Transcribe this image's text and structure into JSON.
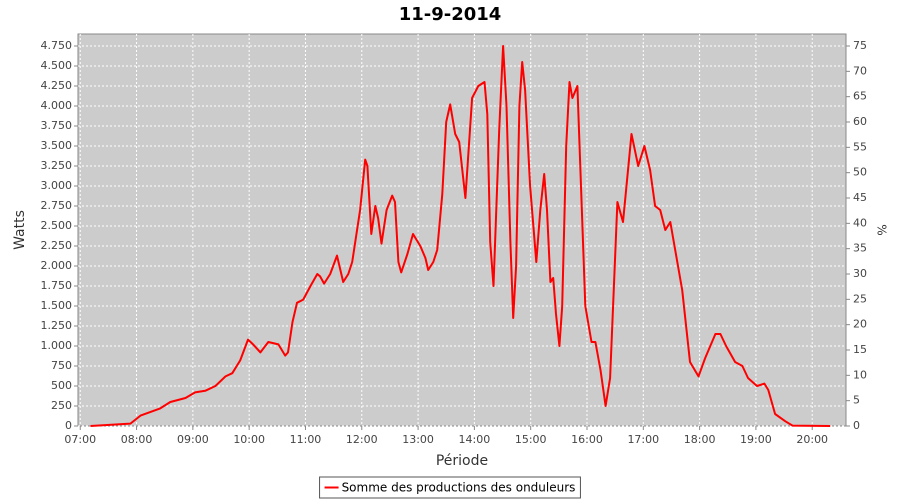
{
  "chart_data": {
    "type": "line",
    "title": "11-9-2014",
    "x_label": "Période",
    "y_label": "Watts",
    "y2_label": "%",
    "x": [
      7.18,
      7.89,
      8.07,
      8.42,
      8.6,
      8.87,
      9.04,
      9.22,
      9.4,
      9.58,
      9.7,
      9.84,
      9.98,
      10.07,
      10.2,
      10.34,
      10.52,
      10.64,
      10.69,
      10.77,
      10.85,
      10.96,
      11.09,
      11.21,
      11.26,
      11.33,
      11.44,
      11.56,
      11.67,
      11.76,
      11.83,
      11.97,
      12.06,
      12.1,
      12.17,
      12.24,
      12.29,
      12.35,
      12.44,
      12.54,
      12.59,
      12.65,
      12.7,
      12.81,
      12.91,
      13.04,
      13.13,
      13.18,
      13.27,
      13.34,
      13.43,
      13.5,
      13.57,
      13.66,
      13.73,
      13.84,
      13.96,
      14.07,
      14.18,
      14.23,
      14.28,
      14.34,
      14.44,
      14.51,
      14.57,
      14.64,
      14.69,
      14.74,
      14.8,
      14.85,
      14.9,
      14.99,
      15.1,
      15.17,
      15.24,
      15.29,
      15.35,
      15.4,
      15.45,
      15.51,
      15.56,
      15.63,
      15.69,
      15.74,
      15.83,
      15.97,
      16.08,
      16.15,
      16.24,
      16.33,
      16.41,
      16.54,
      16.64,
      16.79,
      16.91,
      17.02,
      17.12,
      17.21,
      17.3,
      17.39,
      17.48,
      17.69,
      17.83,
      17.98,
      18.1,
      18.28,
      18.37,
      18.47,
      18.63,
      18.76,
      18.86,
      19.02,
      19.15,
      19.22,
      19.34,
      19.52,
      19.65,
      20.32
    ],
    "series": [
      {
        "name": "Somme des productions des onduleurs",
        "color": "#ff0000",
        "values": [
          0,
          30,
          130,
          220,
          300,
          350,
          420,
          440,
          500,
          620,
          660,
          820,
          1080,
          1020,
          920,
          1050,
          1020,
          880,
          920,
          1300,
          1540,
          1580,
          1750,
          1900,
          1870,
          1780,
          1900,
          2130,
          1800,
          1900,
          2050,
          2700,
          3330,
          3250,
          2400,
          2750,
          2600,
          2280,
          2700,
          2880,
          2800,
          2050,
          1920,
          2150,
          2400,
          2250,
          2100,
          1950,
          2050,
          2200,
          2900,
          3800,
          4020,
          3650,
          3550,
          2850,
          4100,
          4250,
          4300,
          3900,
          2300,
          1750,
          3700,
          4750,
          4000,
          2300,
          1350,
          2000,
          4000,
          4550,
          4200,
          3000,
          2050,
          2700,
          3150,
          2700,
          1800,
          1850,
          1400,
          1000,
          1500,
          3500,
          4300,
          4100,
          4250,
          1500,
          1050,
          1050,
          700,
          250,
          600,
          2800,
          2550,
          3650,
          3250,
          3500,
          3200,
          2750,
          2700,
          2450,
          2550,
          1700,
          800,
          620,
          850,
          1150,
          1150,
          1000,
          800,
          750,
          600,
          500,
          530,
          450,
          150,
          60,
          5,
          0
        ]
      }
    ],
    "xlim": [
      6.96,
      20.6
    ],
    "xticks": [
      {
        "value": 7,
        "label": "07:00"
      },
      {
        "value": 8,
        "label": "08:00"
      },
      {
        "value": 9,
        "label": "09:00"
      },
      {
        "value": 10,
        "label": "10:00"
      },
      {
        "value": 11,
        "label": "11:00"
      },
      {
        "value": 12,
        "label": "12:00"
      },
      {
        "value": 13,
        "label": "13:00"
      },
      {
        "value": 14,
        "label": "14:00"
      },
      {
        "value": 15,
        "label": "15:00"
      },
      {
        "value": 16,
        "label": "16:00"
      },
      {
        "value": 17,
        "label": "17:00"
      },
      {
        "value": 18,
        "label": "18:00"
      },
      {
        "value": 19,
        "label": "19:00"
      },
      {
        "value": 20,
        "label": "20:00"
      }
    ],
    "ylim": [
      0,
      4900
    ],
    "yticks": [
      0,
      250,
      500,
      750,
      {
        "value": 1000,
        "label": "1.000"
      },
      {
        "value": 1250,
        "label": "1.250"
      },
      {
        "value": 1500,
        "label": "1.500"
      },
      {
        "value": 1750,
        "label": "1.750"
      },
      {
        "value": 2000,
        "label": "2.000"
      },
      {
        "value": 2250,
        "label": "2.250"
      },
      {
        "value": 2500,
        "label": "2.500"
      },
      {
        "value": 2750,
        "label": "2.750"
      },
      {
        "value": 3000,
        "label": "3.000"
      },
      {
        "value": 3250,
        "label": "3.250"
      },
      {
        "value": 3500,
        "label": "3.500"
      },
      {
        "value": 3750,
        "label": "3.750"
      },
      {
        "value": 4000,
        "label": "4.000"
      },
      {
        "value": 4250,
        "label": "4.250"
      },
      {
        "value": 4500,
        "label": "4.500"
      },
      {
        "value": 4750,
        "label": "4.750"
      }
    ],
    "y2lim": [
      0,
      77.37
    ],
    "y2ticks": [
      0,
      5,
      10,
      15,
      20,
      25,
      30,
      35,
      40,
      45,
      50,
      55,
      60,
      65,
      70,
      75
    ],
    "grid": true,
    "legend": "bottom"
  }
}
